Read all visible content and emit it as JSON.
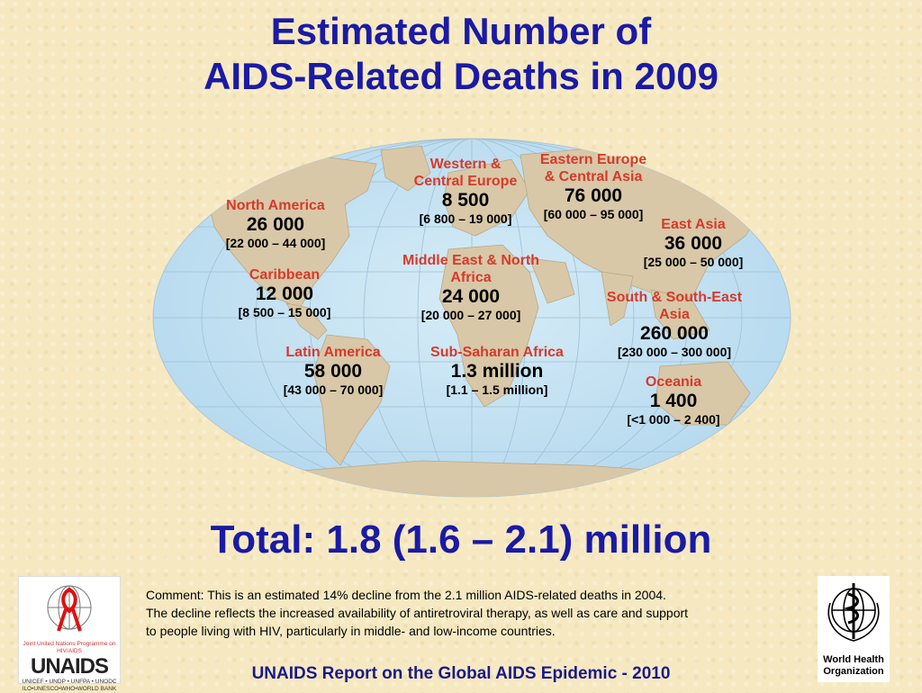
{
  "title": {
    "line1": "Estimated Number of",
    "line2": "AIDS-Related Deaths in 2009"
  },
  "regions": [
    {
      "name": "North America",
      "value": "26 000",
      "range": "[22 000 – 44 000]"
    },
    {
      "name": "Caribbean",
      "value": "12 000",
      "range": "[8 500 – 15 000]"
    },
    {
      "name": "Latin America",
      "value": "58 000",
      "range": "[43 000 – 70 000]"
    },
    {
      "name_line1": "Western &",
      "name_line2": "Central Europe",
      "value": "8 500",
      "range": "[6 800 – 19 000]"
    },
    {
      "name_line1": "Eastern Europe",
      "name_line2": "& Central Asia",
      "value": "76 000",
      "range": "[60 000 – 95 000]"
    },
    {
      "name": "East Asia",
      "value": "36 000",
      "range": "[25 000 – 50 000]"
    },
    {
      "name_line1": "Middle East & North",
      "name_line2": "Africa",
      "value": "24 000",
      "range": "[20 000 – 27 000]"
    },
    {
      "name": "Sub-Saharan Africa",
      "value": "1.3 million",
      "range": "[1.1 – 1.5 million]"
    },
    {
      "name_line1": "South & South-East",
      "name_line2": "Asia",
      "value": "260 000",
      "range": "[230 000 – 300 000]"
    },
    {
      "name": "Oceania",
      "value": "1 400",
      "range": "[<1 000 – 2 400]"
    }
  ],
  "total": "Total: 1.8 (1.6 – 2.1) million",
  "comment": {
    "line1": "Comment:  This is an estimated 14% decline from the 2.1 million AIDS-related deaths in 2004.",
    "line2": "The decline reflects the increased availability of antiretroviral therapy, as well as care and support",
    "line3": "to people living with HIV, particularly in middle- and low-income countries."
  },
  "footer": "UNAIDS Report on the Global AIDS Epidemic - 2010",
  "logos": {
    "unaids": {
      "name": "UNAIDS",
      "tagline": "Joint United Nations Programme on HIV/AIDS",
      "cosponsors_line1": "UNICEF • UNDP • UNFPA • UNODC",
      "cosponsors_line2": "ILO•UNESCO•WHO•WORLD BANK"
    },
    "who": {
      "name_line1": "World Health",
      "name_line2": "Organization"
    }
  },
  "colors": {
    "title": "#1a1aa6",
    "region_name": "#d63a2a",
    "ocean": "#c4e2f2",
    "land": "#d8c8a8",
    "background": "#f6e9c2"
  }
}
